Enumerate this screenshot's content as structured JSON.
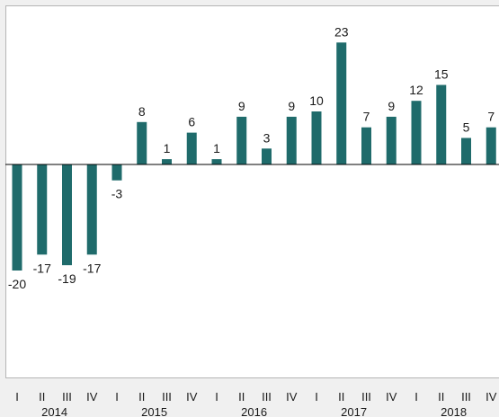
{
  "chart_data": {
    "type": "bar",
    "bar_color": "#1f6b6b",
    "axis_color": "#000000",
    "grid": false,
    "legend": "none",
    "ylim": [
      -20,
      23
    ],
    "categories": [
      {
        "quarter": "I",
        "year": "2014"
      },
      {
        "quarter": "II",
        "year": "2014"
      },
      {
        "quarter": "III",
        "year": "2014"
      },
      {
        "quarter": "IV",
        "year": "2014"
      },
      {
        "quarter": "I",
        "year": "2015"
      },
      {
        "quarter": "II",
        "year": "2015"
      },
      {
        "quarter": "III",
        "year": "2015"
      },
      {
        "quarter": "IV",
        "year": "2015"
      },
      {
        "quarter": "I",
        "year": "2016"
      },
      {
        "quarter": "II",
        "year": "2016"
      },
      {
        "quarter": "III",
        "year": "2016"
      },
      {
        "quarter": "IV",
        "year": "2016"
      },
      {
        "quarter": "I",
        "year": "2017"
      },
      {
        "quarter": "II",
        "year": "2017"
      },
      {
        "quarter": "III",
        "year": "2017"
      },
      {
        "quarter": "IV",
        "year": "2017"
      },
      {
        "quarter": "I",
        "year": "2018"
      },
      {
        "quarter": "II",
        "year": "2018"
      },
      {
        "quarter": "III",
        "year": "2018"
      },
      {
        "quarter": "IV",
        "year": "2018"
      }
    ],
    "years": [
      "2014",
      "2015",
      "2016",
      "2017",
      "2018"
    ],
    "values": [
      -20,
      -17,
      -19,
      -17,
      -3,
      8,
      1,
      6,
      1,
      9,
      3,
      9,
      10,
      23,
      7,
      9,
      12,
      15,
      5,
      7
    ],
    "value_labels": [
      "-20",
      "-17",
      "-19",
      "-17",
      "-3",
      "8",
      "1",
      "6",
      "1",
      "9",
      "3",
      "9",
      "10",
      "23",
      "7",
      "9",
      "12",
      "15",
      "5",
      "7"
    ]
  }
}
